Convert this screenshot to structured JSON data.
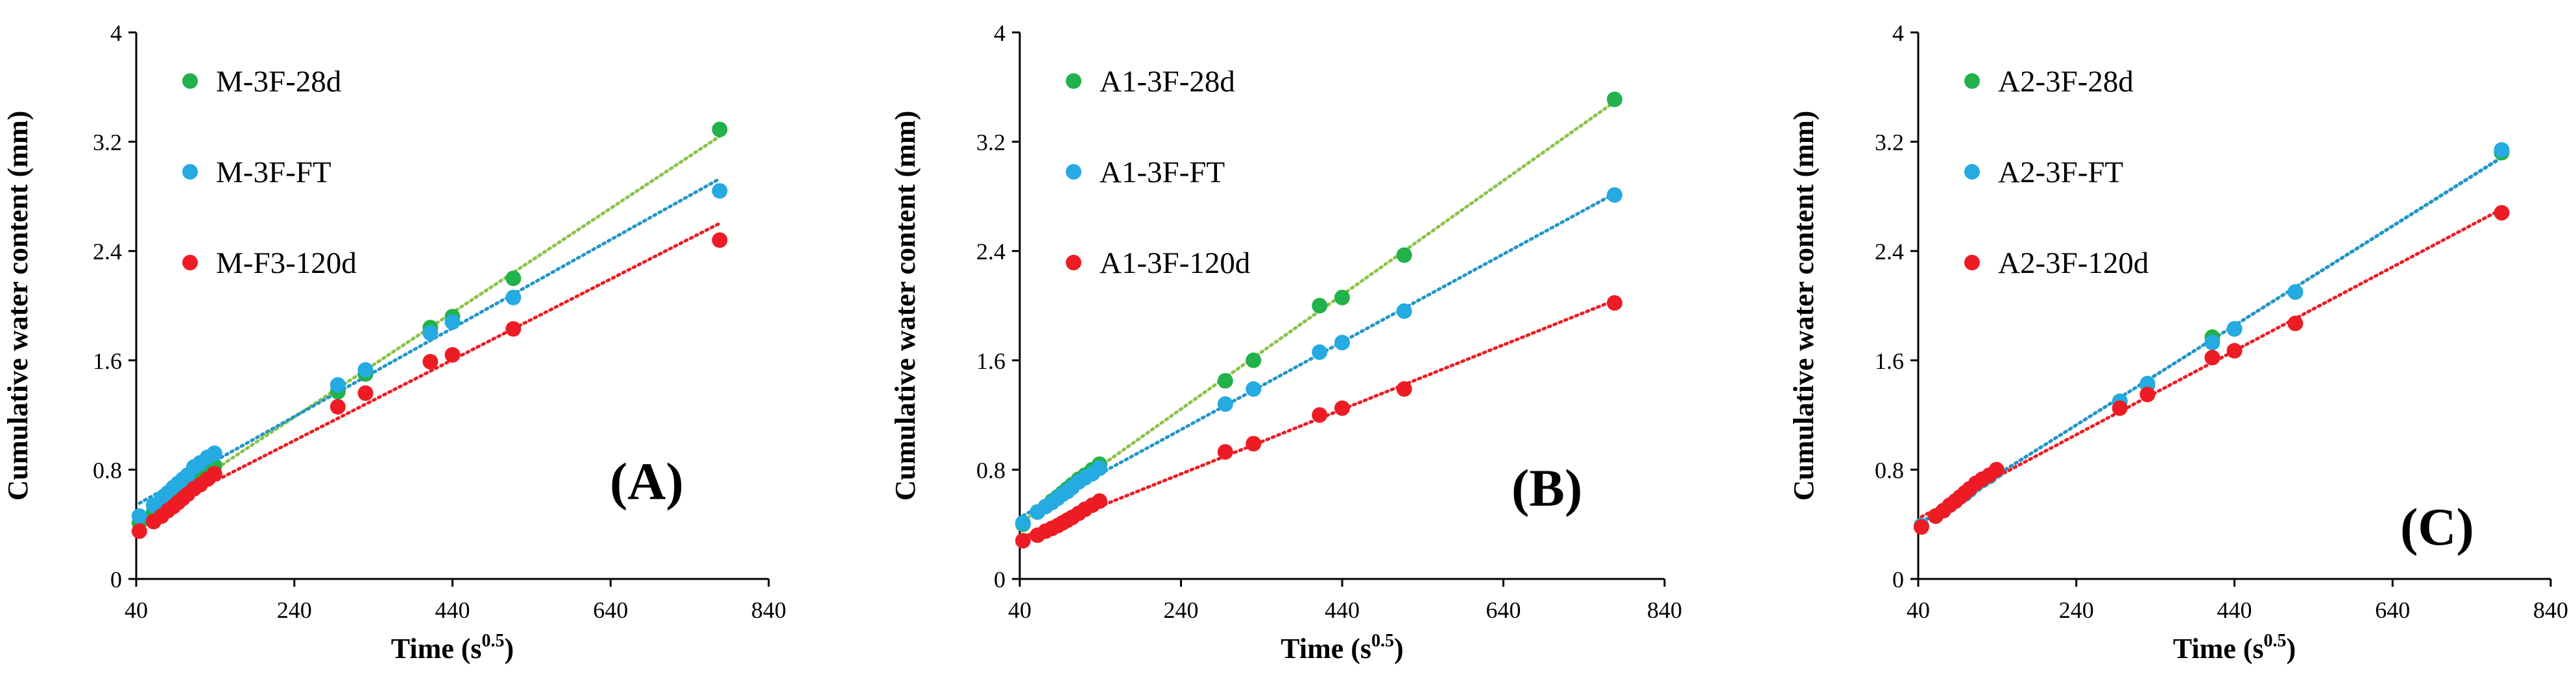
{
  "chart_data": [
    {
      "type": "scatter",
      "panel_label": "(A)",
      "xlabel": "Time (s",
      "xlabel_sup": "0.5",
      "xlabel_close": ")",
      "ylabel": "Cumulative water content (mm)",
      "xlim": [
        40,
        840
      ],
      "ylim": [
        0,
        4
      ],
      "xticks": [
        "40",
        "240",
        "440",
        "640",
        "840"
      ],
      "yticks": [
        "0",
        "0.8",
        "1.6",
        "2.4",
        "3.2",
        "4"
      ],
      "legend": "top-left",
      "series": [
        {
          "name": "M-3F-28d",
          "color": "#21b24b",
          "trend_color": "#8bc34a",
          "x": [
            44,
            62,
            72,
            80,
            87,
            93,
            99,
            105,
            113,
            121,
            130,
            139,
            295,
            330,
            412,
            440,
            517,
            778
          ],
          "y": [
            0.41,
            0.49,
            0.53,
            0.57,
            0.6,
            0.63,
            0.66,
            0.69,
            0.72,
            0.75,
            0.79,
            0.83,
            1.37,
            1.5,
            1.84,
            1.92,
            2.2,
            3.29
          ]
        },
        {
          "name": "M-3F-FT",
          "color": "#25aae1",
          "trend_color": "#2196c8",
          "x": [
            44,
            62,
            72,
            80,
            87,
            93,
            99,
            105,
            113,
            121,
            130,
            139,
            295,
            330,
            412,
            440,
            517,
            778
          ],
          "y": [
            0.46,
            0.54,
            0.59,
            0.63,
            0.67,
            0.7,
            0.73,
            0.76,
            0.82,
            0.85,
            0.89,
            0.92,
            1.42,
            1.53,
            1.8,
            1.88,
            2.06,
            2.84
          ]
        },
        {
          "name": "M-F3-120d",
          "color": "#ed1c24",
          "trend_color": "#ed1c24",
          "x": [
            44,
            62,
            72,
            80,
            87,
            93,
            99,
            105,
            113,
            121,
            130,
            139,
            295,
            330,
            412,
            440,
            517,
            778
          ],
          "y": [
            0.35,
            0.42,
            0.46,
            0.5,
            0.53,
            0.56,
            0.59,
            0.62,
            0.66,
            0.69,
            0.73,
            0.77,
            1.26,
            1.36,
            1.59,
            1.64,
            1.83,
            2.48
          ]
        }
      ]
    },
    {
      "type": "scatter",
      "panel_label": "(B)",
      "xlabel": "Time (s",
      "xlabel_sup": "0.5",
      "xlabel_close": ")",
      "ylabel": "Cumulative water content (mm)",
      "xlim": [
        40,
        840
      ],
      "ylim": [
        0,
        4
      ],
      "xticks": [
        "40",
        "240",
        "440",
        "640",
        "840"
      ],
      "yticks": [
        "0",
        "0.8",
        "1.6",
        "2.4",
        "3.2",
        "4"
      ],
      "legend": "top-left",
      "series": [
        {
          "name": "A1-3F-28d",
          "color": "#21b24b",
          "trend_color": "#8bc34a",
          "x": [
            44,
            62,
            72,
            80,
            87,
            93,
            99,
            105,
            113,
            121,
            130,
            139,
            295,
            330,
            412,
            440,
            517,
            778
          ],
          "y": [
            0.4,
            0.49,
            0.53,
            0.57,
            0.6,
            0.63,
            0.66,
            0.69,
            0.73,
            0.76,
            0.8,
            0.84,
            1.45,
            1.6,
            2.0,
            2.06,
            2.37,
            3.51
          ]
        },
        {
          "name": "A1-3F-FT",
          "color": "#25aae1",
          "trend_color": "#2196c8",
          "x": [
            44,
            62,
            72,
            80,
            87,
            93,
            99,
            105,
            113,
            121,
            130,
            139,
            295,
            330,
            412,
            440,
            517,
            778
          ],
          "y": [
            0.41,
            0.49,
            0.53,
            0.56,
            0.59,
            0.62,
            0.64,
            0.67,
            0.71,
            0.74,
            0.77,
            0.81,
            1.28,
            1.39,
            1.66,
            1.73,
            1.96,
            2.81
          ]
        },
        {
          "name": "A1-3F-120d",
          "color": "#ed1c24",
          "trend_color": "#ed1c24",
          "x": [
            44,
            62,
            72,
            80,
            87,
            93,
            99,
            105,
            113,
            121,
            130,
            139,
            295,
            330,
            412,
            440,
            517,
            778
          ],
          "y": [
            0.28,
            0.32,
            0.35,
            0.37,
            0.39,
            0.41,
            0.43,
            0.45,
            0.48,
            0.51,
            0.54,
            0.57,
            0.93,
            0.99,
            1.2,
            1.25,
            1.39,
            2.02
          ]
        }
      ]
    },
    {
      "type": "scatter",
      "panel_label": "(C)",
      "xlabel": "Time (s",
      "xlabel_sup": "0.5",
      "xlabel_close": ")",
      "ylabel": "Cumulative water content (mm)",
      "xlim": [
        40,
        840
      ],
      "ylim": [
        0,
        4
      ],
      "xticks": [
        "40",
        "240",
        "440",
        "640",
        "840"
      ],
      "yticks": [
        "0",
        "0.8",
        "1.6",
        "2.4",
        "3.2",
        "4"
      ],
      "legend": "top-left",
      "series": [
        {
          "name": "A2-3F-28d",
          "color": "#21b24b",
          "trend_color": "#2196c8",
          "x": [
            44,
            62,
            72,
            80,
            87,
            93,
            99,
            105,
            113,
            121,
            130,
            139,
            295,
            330,
            412,
            440,
            517,
            778
          ],
          "y": [
            0.39,
            0.46,
            0.5,
            0.54,
            0.57,
            0.6,
            0.62,
            0.65,
            0.69,
            0.72,
            0.75,
            0.79,
            1.3,
            1.42,
            1.77,
            1.83,
            2.1,
            3.12
          ]
        },
        {
          "name": "A2-3F-FT",
          "color": "#25aae1",
          "trend_color": "#2196c8",
          "x": [
            44,
            62,
            72,
            80,
            87,
            93,
            99,
            105,
            113,
            121,
            130,
            139,
            295,
            330,
            412,
            440,
            517,
            778
          ],
          "y": [
            0.39,
            0.46,
            0.5,
            0.54,
            0.57,
            0.6,
            0.62,
            0.65,
            0.69,
            0.72,
            0.75,
            0.79,
            1.3,
            1.43,
            1.73,
            1.83,
            2.1,
            3.14
          ]
        },
        {
          "name": "A2-3F-120d",
          "color": "#ed1c24",
          "trend_color": "#ed1c24",
          "x": [
            44,
            62,
            72,
            80,
            87,
            93,
            99,
            105,
            113,
            121,
            130,
            139,
            295,
            330,
            412,
            440,
            517,
            778
          ],
          "y": [
            0.38,
            0.46,
            0.5,
            0.54,
            0.57,
            0.6,
            0.63,
            0.66,
            0.7,
            0.73,
            0.76,
            0.8,
            1.25,
            1.35,
            1.62,
            1.67,
            1.87,
            2.68
          ]
        }
      ]
    }
  ]
}
